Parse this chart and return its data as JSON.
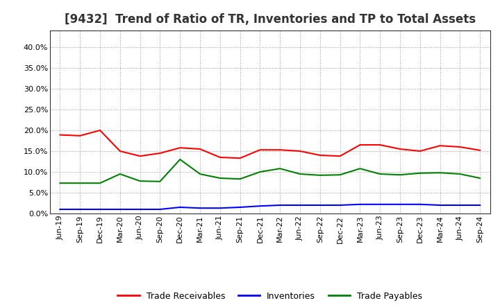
{
  "title": "[9432]  Trend of Ratio of TR, Inventories and TP to Total Assets",
  "x_labels": [
    "Jun-19",
    "Sep-19",
    "Dec-19",
    "Mar-20",
    "Jun-20",
    "Sep-20",
    "Dec-20",
    "Mar-21",
    "Jun-21",
    "Sep-21",
    "Dec-21",
    "Mar-22",
    "Jun-22",
    "Sep-22",
    "Dec-22",
    "Mar-23",
    "Jun-23",
    "Sep-23",
    "Dec-23",
    "Mar-24",
    "Jun-24",
    "Sep-24"
  ],
  "trade_receivables": [
    0.189,
    0.187,
    0.2,
    0.15,
    0.138,
    0.145,
    0.158,
    0.155,
    0.135,
    0.133,
    0.153,
    0.153,
    0.15,
    0.14,
    0.138,
    0.165,
    0.165,
    0.155,
    0.15,
    0.163,
    0.16,
    0.152
  ],
  "inventories": [
    0.01,
    0.01,
    0.01,
    0.01,
    0.01,
    0.01,
    0.015,
    0.013,
    0.013,
    0.015,
    0.018,
    0.02,
    0.02,
    0.02,
    0.02,
    0.022,
    0.022,
    0.022,
    0.022,
    0.02,
    0.02,
    0.02
  ],
  "trade_payables": [
    0.073,
    0.073,
    0.073,
    0.095,
    0.078,
    0.077,
    0.13,
    0.095,
    0.085,
    0.083,
    0.1,
    0.108,
    0.095,
    0.092,
    0.093,
    0.108,
    0.095,
    0.093,
    0.097,
    0.098,
    0.095,
    0.085
  ],
  "line_color_tr": "#ff0000",
  "line_color_inv": "#0000ff",
  "line_color_tp": "#008000",
  "background_color": "#ffffff",
  "grid_color": "#999999",
  "ylim": [
    0.0,
    0.44
  ],
  "yticks": [
    0.0,
    0.05,
    0.1,
    0.15,
    0.2,
    0.25,
    0.3,
    0.35,
    0.4
  ],
  "legend_labels": [
    "Trade Receivables",
    "Inventories",
    "Trade Payables"
  ],
  "title_fontsize": 12,
  "tick_fontsize": 8,
  "legend_fontsize": 9,
  "title_color": "#333333"
}
